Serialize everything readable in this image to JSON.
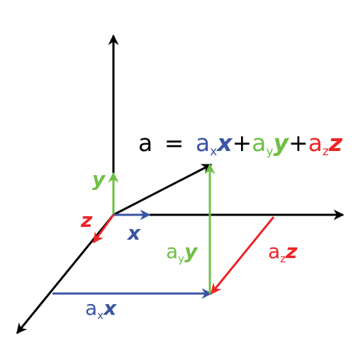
{
  "colors": {
    "axis": "#000000",
    "x": "#3b55a3",
    "y": "#6fbf44",
    "z": "#ee2326"
  },
  "axis_labels": {
    "x": "x",
    "y": "y",
    "z": "z"
  },
  "equation": {
    "lhs": "a",
    "equals": "=",
    "plus": "+",
    "ax_coef": "a",
    "ax_sub": "x",
    "ax_vec": "x",
    "ay_coef": "a",
    "ay_sub": "y",
    "ay_vec": "y",
    "az_coef": "a",
    "az_sub": "z",
    "az_vec": "z"
  },
  "component_labels": {
    "ax": {
      "coef": "a",
      "sub": "x",
      "vec": "x"
    },
    "ay": {
      "coef": "a",
      "sub": "y",
      "vec": "y"
    },
    "az": {
      "coef": "a",
      "sub": "z",
      "vec": "z"
    }
  }
}
